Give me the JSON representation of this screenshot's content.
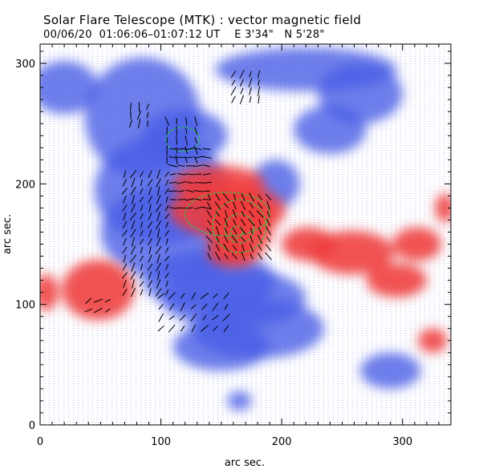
{
  "title": "Solar Flare Telescope (MTK) : vector magnetic field",
  "subtitle": "00/06/20  01:06:06–01:07:12 UT    E 3'34\"   N 5'28\"",
  "chart_data": {
    "type": "heatmap",
    "xlabel": "arc sec.",
    "ylabel": "arc sec.",
    "xlim": [
      0,
      340
    ],
    "ylim": [
      0,
      316
    ],
    "x_major_ticks": [
      0,
      100,
      200,
      300
    ],
    "y_major_ticks": [
      0,
      100,
      200,
      300
    ],
    "x_tick_labels": [
      "0",
      "100",
      "200",
      "300"
    ],
    "y_tick_labels": [
      "0",
      "100",
      "200",
      "300"
    ],
    "grid": false,
    "colors": {
      "positive_polarity": "#ef3b3b",
      "negative_polarity": "#4a5ee6",
      "transverse_field_vectors": "#000000",
      "contours": "#22cc44"
    },
    "negative_regions": [
      {
        "x": 20,
        "y": 280,
        "rx": 28,
        "ry": 22
      },
      {
        "x": 85,
        "y": 255,
        "rx": 48,
        "ry": 50
      },
      {
        "x": 120,
        "y": 240,
        "rx": 35,
        "ry": 22
      },
      {
        "x": 220,
        "y": 295,
        "rx": 75,
        "ry": 18
      },
      {
        "x": 265,
        "y": 275,
        "rx": 35,
        "ry": 25
      },
      {
        "x": 240,
        "y": 245,
        "rx": 30,
        "ry": 20
      },
      {
        "x": 100,
        "y": 195,
        "rx": 55,
        "ry": 45
      },
      {
        "x": 110,
        "y": 160,
        "rx": 60,
        "ry": 40
      },
      {
        "x": 140,
        "y": 120,
        "rx": 55,
        "ry": 25
      },
      {
        "x": 160,
        "y": 105,
        "rx": 60,
        "ry": 25
      },
      {
        "x": 180,
        "y": 80,
        "rx": 55,
        "ry": 25
      },
      {
        "x": 150,
        "y": 65,
        "rx": 40,
        "ry": 20
      },
      {
        "x": 195,
        "y": 200,
        "rx": 20,
        "ry": 20
      },
      {
        "x": 290,
        "y": 45,
        "rx": 25,
        "ry": 15
      },
      {
        "x": 165,
        "y": 20,
        "rx": 10,
        "ry": 8
      }
    ],
    "positive_regions": [
      {
        "x": 165,
        "y": 165,
        "rx": 28,
        "ry": 28
      },
      {
        "x": 155,
        "y": 178,
        "rx": 48,
        "ry": 22
      },
      {
        "x": 148,
        "y": 200,
        "rx": 38,
        "ry": 15
      },
      {
        "x": 160,
        "y": 143,
        "rx": 22,
        "ry": 12
      },
      {
        "x": 258,
        "y": 143,
        "rx": 35,
        "ry": 18
      },
      {
        "x": 222,
        "y": 150,
        "rx": 22,
        "ry": 14
      },
      {
        "x": 312,
        "y": 150,
        "rx": 20,
        "ry": 14
      },
      {
        "x": 48,
        "y": 112,
        "rx": 30,
        "ry": 25
      },
      {
        "x": 295,
        "y": 120,
        "rx": 25,
        "ry": 14
      },
      {
        "x": 5,
        "y": 110,
        "rx": 10,
        "ry": 15
      },
      {
        "x": 335,
        "y": 180,
        "rx": 8,
        "ry": 12
      },
      {
        "x": 325,
        "y": 70,
        "rx": 12,
        "ry": 10
      }
    ],
    "contours": [
      {
        "x": 165,
        "y": 165,
        "rx": 22,
        "ry": 22
      },
      {
        "x": 165,
        "y": 163,
        "rx": 12,
        "ry": 12
      },
      {
        "x": 163,
        "y": 160,
        "rx": 5,
        "ry": 5
      },
      {
        "x": 155,
        "y": 175,
        "rx": 35,
        "ry": 18
      },
      {
        "x": 118,
        "y": 237,
        "rx": 14,
        "ry": 10
      }
    ],
    "vector_fields": [
      {
        "x": [
          70,
          105
        ],
        "y": [
          110,
          210
        ],
        "step": 7,
        "angle_deg": 65
      },
      {
        "x": [
          110,
          140
        ],
        "y": [
          180,
          230
        ],
        "step": 7,
        "angle_deg": 0
      },
      {
        "x": [
          140,
          190
        ],
        "y": [
          140,
          195
        ],
        "step": 7,
        "angle_deg": 120
      },
      {
        "x": [
          105,
          135
        ],
        "y": [
          220,
          255
        ],
        "step": 8,
        "angle_deg": 100
      },
      {
        "x": [
          160,
          185
        ],
        "y": [
          270,
          295
        ],
        "step": 7,
        "angle_deg": 70
      },
      {
        "x": [
          75,
          90
        ],
        "y": [
          250,
          270
        ],
        "step": 7,
        "angle_deg": 80
      },
      {
        "x": [
          100,
          160
        ],
        "y": [
          80,
          115
        ],
        "step": 9,
        "angle_deg": 50
      },
      {
        "x": [
          40,
          60
        ],
        "y": [
          95,
          110
        ],
        "step": 8,
        "angle_deg": 30
      }
    ]
  }
}
